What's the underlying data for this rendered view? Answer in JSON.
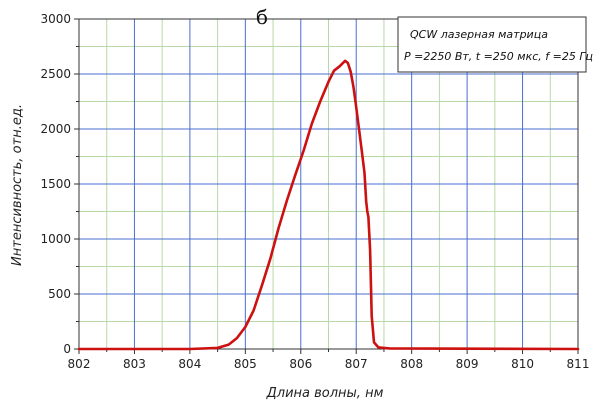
{
  "chart_data": {
    "type": "line",
    "panel_label": "б",
    "legend": {
      "line1": "QCW лазерная матрица",
      "line2": "P =2250 Вт, t =250 мкс, f =25 Гц"
    },
    "xlabel": "Длина волны, нм",
    "ylabel": "Интенсивность, отн.ед.",
    "xlim": [
      802,
      811
    ],
    "ylim": [
      0,
      3000
    ],
    "x_ticks": [
      802,
      803,
      804,
      805,
      806,
      807,
      808,
      809,
      810,
      811
    ],
    "y_ticks": [
      0,
      500,
      1000,
      1500,
      2000,
      2500,
      3000
    ],
    "grid": true,
    "line_color": "#cc1111",
    "major_grid_color": "#4a6fd0",
    "minor_grid_color": "#b7d9a8",
    "series": [
      {
        "x": [
          802,
          804,
          804.5,
          804.7,
          804.85,
          805.0,
          805.15,
          805.3,
          805.45,
          805.6,
          805.75,
          805.9,
          806.05,
          806.2,
          806.35,
          806.5,
          806.6,
          806.7,
          806.8,
          806.85,
          806.9,
          806.95,
          807.0,
          807.05,
          807.1,
          807.15,
          807.18,
          807.2,
          807.22,
          807.25,
          807.28,
          807.32,
          807.4,
          807.6,
          811
        ],
        "y": [
          0,
          0,
          10,
          40,
          100,
          200,
          350,
          580,
          820,
          1100,
          1350,
          1580,
          1800,
          2050,
          2250,
          2430,
          2530,
          2570,
          2620,
          2600,
          2520,
          2380,
          2200,
          2000,
          1800,
          1600,
          1340,
          1250,
          1200,
          900,
          300,
          60,
          15,
          5,
          0
        ]
      }
    ]
  }
}
